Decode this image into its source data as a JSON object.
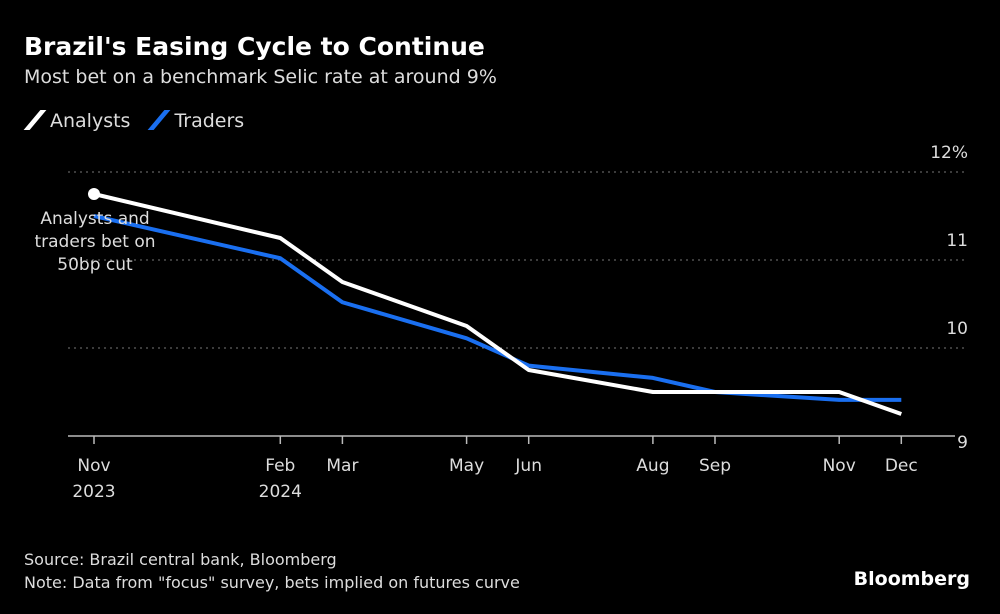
{
  "chart_data": {
    "type": "line",
    "title": "Brazil's Easing Cycle to Continue",
    "subtitle": "Most bet on a benchmark Selic rate at around 9%",
    "x_ticks": [
      {
        "month": 0,
        "label": "Nov",
        "label2": "2023"
      },
      {
        "month": 3,
        "label": "Feb",
        "label2": "2024"
      },
      {
        "month": 4,
        "label": "Mar",
        "label2": ""
      },
      {
        "month": 6,
        "label": "May",
        "label2": ""
      },
      {
        "month": 7,
        "label": "Jun",
        "label2": ""
      },
      {
        "month": 9,
        "label": "Aug",
        "label2": ""
      },
      {
        "month": 10,
        "label": "Sep",
        "label2": ""
      },
      {
        "month": 12,
        "label": "Nov",
        "label2": ""
      },
      {
        "month": 13,
        "label": "Dec",
        "label2": ""
      }
    ],
    "y_ticks": [
      {
        "v": 12,
        "label": "12%"
      },
      {
        "v": 11,
        "label": "11"
      },
      {
        "v": 10,
        "label": "10"
      },
      {
        "v": 9,
        "label": "9"
      }
    ],
    "ylim": [
      9,
      12
    ],
    "grid": true,
    "legend_placement": "top-left",
    "series": [
      {
        "name": "Analysts",
        "color": "#ffffff",
        "x": [
          "Nov 2023",
          "Feb 2024",
          "Mar 2024",
          "May 2024",
          "Jun 2024",
          "Aug 2024",
          "Sep 2024",
          "Nov 2024",
          "Dec 2024"
        ],
        "values": [
          11.75,
          11.25,
          10.75,
          10.25,
          9.75,
          9.5,
          9.5,
          9.5,
          9.25
        ]
      },
      {
        "name": "Traders",
        "color": "#1a6ff0",
        "x": [
          "Nov 2023",
          "Feb 2024",
          "Mar 2024",
          "May 2024",
          "Jun 2024",
          "Aug 2024",
          "Sep 2024",
          "Nov 2024",
          "Dec 2024"
        ],
        "values": [
          11.5,
          11.02,
          10.52,
          10.11,
          9.8,
          9.66,
          9.5,
          9.41,
          9.41
        ]
      }
    ],
    "annotation": [
      "Analysts and",
      "traders bet on",
      "50bp cut"
    ]
  },
  "footer": {
    "source": "Source: Brazil central bank, Bloomberg",
    "note": "Note: Data from \"focus\" survey, bets implied on futures curve",
    "brand": "Bloomberg"
  }
}
